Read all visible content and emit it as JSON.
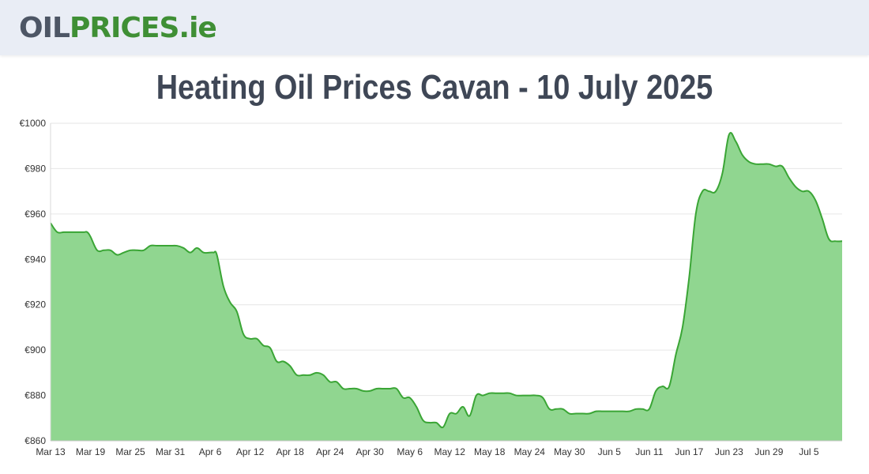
{
  "header": {
    "logo": {
      "part1": "OIL",
      "part2": "PRICES",
      "part3": ".ie"
    }
  },
  "colors": {
    "line": "#3aa535",
    "fill": "#90d690",
    "grid": "#e6e6e6",
    "header_bg": "#e9edf5",
    "title": "#3f4756"
  },
  "chart_data": {
    "type": "area",
    "title": "Heating Oil Prices Cavan - 10 July 2025",
    "xlabel": "",
    "ylabel": "",
    "ylim": [
      860,
      1000
    ],
    "y_ticks": [
      "€860",
      "€880",
      "€900",
      "€920",
      "€940",
      "€960",
      "€980",
      "€1000"
    ],
    "y_tick_values": [
      860,
      880,
      900,
      920,
      940,
      960,
      980,
      1000
    ],
    "x_ticks": [
      "Mar 13",
      "Mar 19",
      "Mar 25",
      "Mar 31",
      "Apr 6",
      "Apr 12",
      "Apr 18",
      "Apr 24",
      "Apr 30",
      "May 6",
      "May 12",
      "May 18",
      "May 24",
      "May 30",
      "Jun 5",
      "Jun 11",
      "Jun 17",
      "Jun 23",
      "Jun 29",
      "Jul 5"
    ],
    "x_tick_days": [
      0,
      6,
      12,
      18,
      24,
      30,
      36,
      42,
      48,
      54,
      60,
      66,
      72,
      78,
      84,
      90,
      96,
      102,
      108,
      114
    ],
    "x_range_days": [
      0,
      119
    ],
    "series": [
      {
        "name": "Cavan",
        "days": [
          0,
          1,
          2,
          3,
          4,
          5,
          5.5,
          6,
          7,
          8,
          9,
          10,
          11,
          12,
          13,
          14,
          15,
          16,
          17,
          18,
          19,
          20,
          21,
          22,
          23,
          24,
          24.5,
          25,
          26,
          27,
          28,
          29,
          30,
          31,
          32,
          33,
          34,
          35,
          36,
          37,
          38,
          39,
          40,
          41,
          42,
          43,
          44,
          45,
          46,
          47,
          48,
          49,
          50,
          51,
          52,
          53,
          54,
          55,
          56,
          57,
          58,
          59,
          60,
          61,
          62,
          63,
          64,
          65,
          66,
          67,
          68,
          69,
          70,
          71,
          72,
          73,
          74,
          75,
          76,
          77,
          78,
          79,
          80,
          81,
          82,
          83,
          84,
          85,
          86,
          87,
          88,
          89,
          90,
          91,
          92,
          93,
          94,
          95,
          96,
          97,
          98,
          99,
          100,
          101,
          102,
          103,
          104,
          105,
          106,
          107,
          108,
          109,
          110,
          111,
          112,
          113,
          114,
          115,
          116,
          117,
          118,
          119
        ],
        "values": [
          956,
          952,
          952,
          952,
          952,
          952,
          952,
          950,
          944,
          944,
          944,
          942,
          943,
          944,
          944,
          944,
          946,
          946,
          946,
          946,
          946,
          945,
          943,
          945,
          943,
          943,
          943,
          942,
          928,
          921,
          917,
          907,
          905,
          905,
          902,
          901,
          895,
          895,
          893,
          889,
          889,
          889,
          890,
          889,
          886,
          886,
          883,
          883,
          883,
          882,
          882,
          883,
          883,
          883,
          883,
          879,
          879,
          875,
          869,
          868,
          868,
          866,
          872,
          872,
          875,
          871,
          880,
          880,
          881,
          881,
          881,
          881,
          880,
          880,
          880,
          880,
          879,
          874,
          874,
          874,
          872,
          872,
          872,
          872,
          873,
          873,
          873,
          873,
          873,
          873,
          874,
          874,
          874,
          882,
          884,
          884,
          898,
          910,
          932,
          960,
          970,
          970,
          970,
          978,
          995,
          992,
          986,
          983,
          982,
          982,
          982,
          981,
          981,
          976,
          972,
          970,
          970,
          966,
          958,
          949,
          948,
          948
        ]
      }
    ]
  }
}
